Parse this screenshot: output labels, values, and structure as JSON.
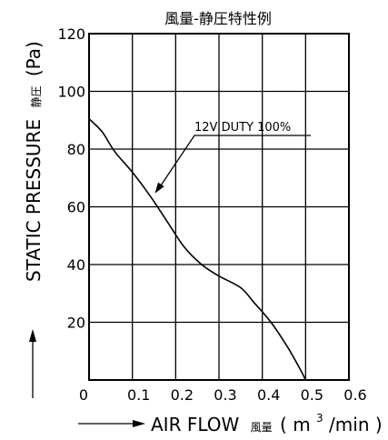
{
  "chart_data": {
    "type": "line",
    "title": "風量-静圧特性例",
    "xlabel": "AIR FLOW 風量(m³/min)",
    "xlabel_parts": {
      "main": "AIR FLOW",
      "jp": "風量",
      "open": "(",
      "unit_base": "m",
      "unit_sup": "3",
      "unit_rest": "/min",
      "close": ")"
    },
    "ylabel": "STATIC PRESSURE 静圧(Pa)",
    "ylabel_parts": {
      "main": "STATIC PRESSURE",
      "jp": "静圧",
      "unit": "(Pa)"
    },
    "xlim": [
      0,
      0.6
    ],
    "ylim": [
      0,
      120
    ],
    "x_ticks": [
      "0",
      "0.1",
      "0.2",
      "0.3",
      "0.4",
      "0.5",
      "0.6"
    ],
    "y_ticks": [
      "20",
      "40",
      "60",
      "80",
      "100",
      "120"
    ],
    "grid": true,
    "series": [
      {
        "name": "12V DUTY 100%",
        "x": [
          0.0,
          0.03,
          0.06,
          0.1,
          0.14,
          0.18,
          0.22,
          0.26,
          0.3,
          0.35,
          0.38,
          0.42,
          0.46,
          0.49,
          0.5
        ],
        "y": [
          90.5,
          86,
          79,
          72,
          64,
          55,
          46,
          40,
          36,
          32,
          27,
          20,
          11,
          3,
          0
        ]
      }
    ],
    "annotation": {
      "text": "12V DUTY 100%",
      "points_to": [
        0.15,
        64
      ]
    }
  }
}
